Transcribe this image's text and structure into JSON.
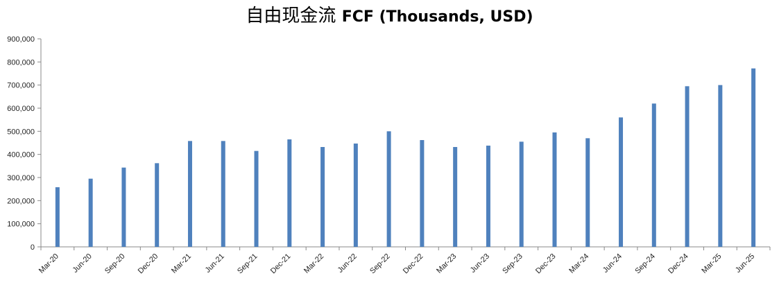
{
  "chart_data": {
    "type": "bar",
    "title_cn": "自由现金流",
    "title_en": "FCF (Thousands, USD)",
    "xlabel": "",
    "ylabel": "",
    "ylim": [
      0,
      900000
    ],
    "yticks": [
      "0",
      "100,000",
      "200,000",
      "300,000",
      "400,000",
      "500,000",
      "600,000",
      "700,000",
      "800,000",
      "900,000"
    ],
    "grid": false,
    "bar_color": "#4f81bd",
    "categories": [
      "Mar-20",
      "Jun-20",
      "Sep-20",
      "Dec-20",
      "Mar-21",
      "Jun-21",
      "Sep-21",
      "Dec-21",
      "Mar-22",
      "Jun-22",
      "Sep-22",
      "Dec-22",
      "Mar-23",
      "Jun-23",
      "Sep-23",
      "Dec-23",
      "Mar-24",
      "Jun-24",
      "Sep-24",
      "Dec-24",
      "Mar-25",
      "Jun-25"
    ],
    "values": [
      258000,
      295000,
      343000,
      362000,
      458000,
      458000,
      415000,
      465000,
      432000,
      447000,
      500000,
      462000,
      432000,
      438000,
      455000,
      495000,
      470000,
      560000,
      620000,
      695000,
      700000,
      772000
    ]
  }
}
